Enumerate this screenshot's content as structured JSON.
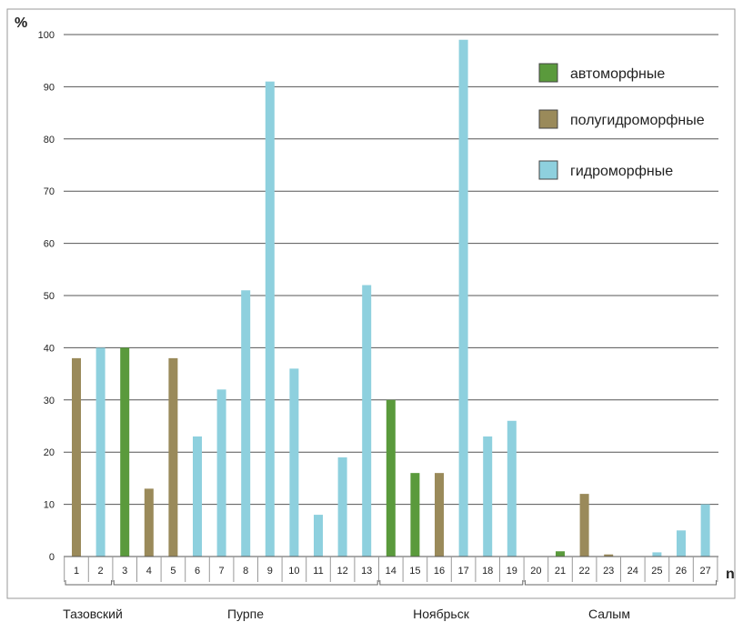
{
  "chart_data": {
    "type": "bar",
    "ylabel": "%",
    "xlabel": "n",
    "ylim": [
      0,
      100
    ],
    "yticks": [
      0,
      10,
      20,
      30,
      40,
      50,
      60,
      70,
      80,
      90,
      100
    ],
    "grid": true,
    "legend_position": "top-right",
    "series": [
      {
        "name": "автоморфные",
        "color": "#5a9a3c"
      },
      {
        "name": "полугидроморфные",
        "color": "#9a8a5a"
      },
      {
        "name": "гидроморфные",
        "color": "#8ed0de"
      }
    ],
    "categories": [
      "1",
      "2",
      "3",
      "4",
      "5",
      "6",
      "7",
      "8",
      "9",
      "10",
      "11",
      "12",
      "13",
      "14",
      "15",
      "16",
      "17",
      "18",
      "19",
      "20",
      "21",
      "22",
      "23",
      "24",
      "25",
      "26",
      "27"
    ],
    "bars": [
      {
        "category": "1",
        "series": "полугидроморфные",
        "value": 38
      },
      {
        "category": "2",
        "series": "гидроморфные",
        "value": 40
      },
      {
        "category": "3",
        "series": "автоморфные",
        "value": 40
      },
      {
        "category": "4",
        "series": "полугидроморфные",
        "value": 13
      },
      {
        "category": "5",
        "series": "полугидроморфные",
        "value": 38
      },
      {
        "category": "6",
        "series": "гидроморфные",
        "value": 23
      },
      {
        "category": "7",
        "series": "гидроморфные",
        "value": 32
      },
      {
        "category": "8",
        "series": "гидроморфные",
        "value": 51
      },
      {
        "category": "9",
        "series": "гидроморфные",
        "value": 91
      },
      {
        "category": "10",
        "series": "гидроморфные",
        "value": 36
      },
      {
        "category": "11",
        "series": "гидроморфные",
        "value": 8
      },
      {
        "category": "12",
        "series": "гидроморфные",
        "value": 19
      },
      {
        "category": "13",
        "series": "гидроморфные",
        "value": 52
      },
      {
        "category": "14",
        "series": "автоморфные",
        "value": 30
      },
      {
        "category": "15",
        "series": "автоморфные",
        "value": 16
      },
      {
        "category": "16",
        "series": "полугидроморфные",
        "value": 16
      },
      {
        "category": "17",
        "series": "гидроморфные",
        "value": 99
      },
      {
        "category": "18",
        "series": "гидроморфные",
        "value": 23
      },
      {
        "category": "19",
        "series": "гидроморфные",
        "value": 26
      },
      {
        "category": "20",
        "series": "гидроморфные",
        "value": 0
      },
      {
        "category": "21",
        "series": "автоморфные",
        "value": 1
      },
      {
        "category": "22",
        "series": "полугидроморфные",
        "value": 12
      },
      {
        "category": "23",
        "series": "полугидроморфные",
        "value": 0.4
      },
      {
        "category": "24",
        "series": "гидроморфные",
        "value": 0
      },
      {
        "category": "25",
        "series": "гидроморфные",
        "value": 0.8
      },
      {
        "category": "26",
        "series": "гидроморфные",
        "value": 5
      },
      {
        "category": "27",
        "series": "гидроморфные",
        "value": 10
      }
    ],
    "groups": [
      {
        "label": "Тазовский",
        "from": "1",
        "to": "2"
      },
      {
        "label": "Пурпе",
        "from": "3",
        "to": "13"
      },
      {
        "label": "Ноябрьск",
        "from": "14",
        "to": "19"
      },
      {
        "label": "Салым",
        "from": "20",
        "to": "27"
      }
    ]
  }
}
